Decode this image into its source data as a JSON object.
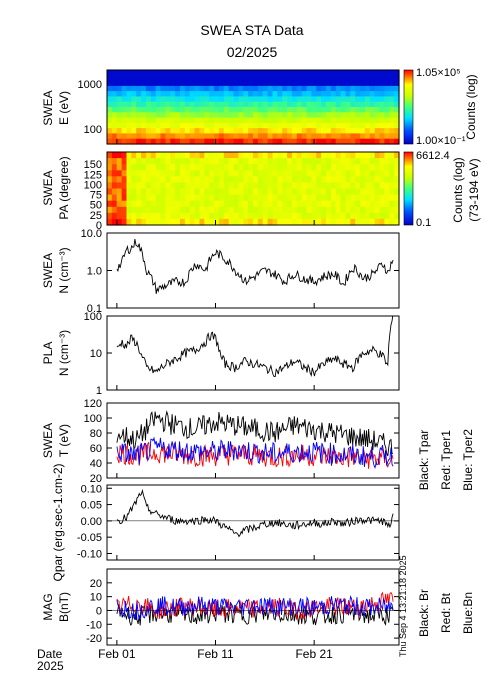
{
  "header": {
    "title": "SWEA STA Data",
    "subtitle": "02/2025"
  },
  "footer": {
    "date_label": "Date",
    "year_label": "2025",
    "timestamp": "Thu Sep  4 13:21:18 2025"
  },
  "colors": {
    "tpar": "#000000",
    "tper1": "#ff0000",
    "tper2": "#0000ff",
    "br": "#000000",
    "bt": "#ff0000",
    "bn": "#0000ff"
  },
  "chart_data": [
    {
      "type": "heatmap",
      "id": "swea_energy",
      "ylabel": [
        "SWEA",
        "E (eV)"
      ],
      "yscale": "log",
      "yticks": [
        "1000",
        "100"
      ],
      "colorbar": {
        "label": "Counts (log)",
        "max_label": "1.05×10⁵",
        "min_label": "1.00×10⁻¹",
        "scale": "log"
      },
      "x_days": [
        1,
        29
      ],
      "description_values": "energy spectrogram, high counts at low energy"
    },
    {
      "type": "heatmap",
      "id": "swea_pa",
      "ylabel": [
        "SWEA",
        "PA (degree)"
      ],
      "yticks": [
        "150",
        "125",
        "100",
        "75",
        "50",
        "25",
        "0"
      ],
      "ylim": [
        0,
        180
      ],
      "colorbar": {
        "label": [
          "Counts (log)",
          "(73-194 eV)"
        ],
        "max_label": "6612.4",
        "min_label": "0.1",
        "scale": "log"
      }
    },
    {
      "type": "line",
      "id": "swea_n",
      "ylabel": [
        "SWEA",
        "N (cm⁻³)"
      ],
      "yscale": "log",
      "ylim": [
        0.1,
        10
      ],
      "yticks": [
        "10.0",
        "1.0",
        "0.1"
      ],
      "x": [
        1,
        1.5,
        2,
        2.5,
        3,
        3.5,
        4,
        4.5,
        5,
        5.5,
        6,
        7,
        8,
        9,
        10,
        10.5,
        11,
        12,
        13,
        14,
        15,
        16,
        17,
        18,
        19,
        20,
        21,
        22,
        23,
        24,
        25,
        26,
        27,
        28,
        28.5,
        29
      ],
      "y": [
        1.2,
        1.5,
        3.5,
        4.0,
        6.0,
        3.0,
        1.0,
        0.6,
        0.3,
        0.35,
        0.4,
        0.5,
        0.5,
        1.5,
        1.0,
        2.0,
        3.0,
        2.0,
        1.0,
        0.5,
        0.7,
        1.0,
        0.8,
        0.5,
        0.8,
        0.6,
        0.5,
        0.7,
        0.8,
        0.4,
        1.2,
        0.6,
        0.8,
        1.5,
        0.8,
        2.0
      ]
    },
    {
      "type": "line",
      "id": "pla_n",
      "ylabel": [
        "PLA",
        "N (cm⁻³)"
      ],
      "yscale": "log",
      "ylim": [
        1,
        100
      ],
      "yticks": [
        "100",
        "10",
        "1"
      ],
      "x": [
        1,
        1.5,
        2,
        2.5,
        3,
        3.5,
        4,
        5,
        6,
        7,
        8,
        9,
        10,
        10.5,
        11,
        11.5,
        12,
        13,
        14,
        15,
        16,
        17,
        18,
        19,
        20,
        21,
        22,
        23,
        24,
        25,
        26,
        27,
        28,
        28.5,
        29
      ],
      "y": [
        12,
        20,
        15,
        25,
        18,
        8,
        4,
        3,
        5,
        7,
        10,
        12,
        20,
        30,
        25,
        8,
        5,
        4,
        6,
        5,
        4,
        3,
        4,
        6,
        4,
        3,
        5,
        7,
        5,
        4,
        10,
        12,
        8,
        4,
        90
      ]
    },
    {
      "type": "line",
      "id": "swea_t",
      "ylabel": [
        "SWEA",
        "T (eV)"
      ],
      "ylim": [
        20,
        120
      ],
      "yticks": [
        "120",
        "100",
        "80",
        "60",
        "40",
        "20"
      ],
      "series": [
        {
          "name": "Black: Tpar",
          "x": [
            1,
            3,
            5,
            7,
            9,
            11,
            13,
            15,
            17,
            19,
            21,
            23,
            25,
            27,
            29
          ],
          "y": [
            80,
            70,
            100,
            90,
            85,
            95,
            90,
            85,
            80,
            90,
            85,
            80,
            75,
            70,
            60
          ]
        },
        {
          "name": "Red: Tper1",
          "x": [
            1,
            3,
            5,
            7,
            9,
            11,
            13,
            15,
            17,
            19,
            21,
            23,
            25,
            27,
            29
          ],
          "y": [
            55,
            50,
            55,
            52,
            50,
            50,
            52,
            50,
            48,
            50,
            50,
            48,
            47,
            46,
            45
          ]
        },
        {
          "name": "Blue: Tper2",
          "x": [
            1,
            3,
            5,
            7,
            9,
            11,
            13,
            15,
            17,
            19,
            21,
            23,
            25,
            27,
            29
          ],
          "y": [
            55,
            50,
            60,
            58,
            55,
            55,
            58,
            55,
            52,
            55,
            55,
            52,
            50,
            48,
            50
          ]
        }
      ]
    },
    {
      "type": "line",
      "id": "qpar",
      "ylabel": [
        "Qpar (erg.sec-1.cm-2)"
      ],
      "ylim": [
        -0.12,
        0.11
      ],
      "yticks": [
        "0.10",
        "0.05",
        "0.00",
        "-0.05",
        "-0.10"
      ],
      "x": [
        1,
        2,
        3,
        3.5,
        4,
        5,
        6,
        7,
        8,
        9,
        10,
        11,
        12,
        13,
        14,
        15,
        16,
        17,
        18,
        19,
        20,
        21,
        22,
        23,
        24,
        25,
        26,
        27,
        28,
        28.5,
        29
      ],
      "y": [
        0.0,
        0.01,
        0.06,
        0.09,
        0.04,
        0.02,
        0.01,
        0.0,
        0.0,
        0.0,
        0.005,
        0.0,
        -0.02,
        -0.04,
        -0.03,
        -0.02,
        -0.01,
        -0.005,
        -0.01,
        -0.015,
        -0.01,
        -0.005,
        -0.01,
        0.0,
        -0.01,
        0.0,
        0.005,
        0.0,
        0.0,
        -0.02,
        0.01
      ]
    },
    {
      "type": "line",
      "id": "mag_b",
      "ylabel": [
        "MAG",
        "B(nT)"
      ],
      "ylim": [
        -25,
        30
      ],
      "yticks": [
        "20",
        "10",
        "0",
        "-10",
        "-20"
      ],
      "series": [
        {
          "name": "Black: Br",
          "x": [
            1,
            3,
            5,
            7,
            9,
            11,
            13,
            15,
            17,
            19,
            21,
            23,
            25,
            27,
            29
          ],
          "y": [
            0,
            -5,
            -2,
            -3,
            -4,
            -2,
            -3,
            -3,
            -2,
            -3,
            -4,
            -3,
            -2,
            -4,
            -3
          ]
        },
        {
          "name": "Red: Bt",
          "x": [
            1,
            3,
            5,
            7,
            9,
            11,
            13,
            15,
            17,
            19,
            21,
            23,
            25,
            27,
            29
          ],
          "y": [
            2,
            5,
            0,
            2,
            3,
            0,
            2,
            1,
            3,
            0,
            2,
            3,
            2,
            5,
            8
          ]
        },
        {
          "name": "Blue:Bn",
          "x": [
            1,
            3,
            5,
            7,
            9,
            11,
            13,
            15,
            17,
            19,
            21,
            23,
            25,
            27,
            29
          ],
          "y": [
            3,
            0,
            4,
            2,
            4,
            3,
            2,
            4,
            3,
            3,
            2,
            4,
            3,
            2,
            3
          ]
        }
      ]
    }
  ],
  "xaxis": {
    "ticks": [
      {
        "day": 1,
        "label": "Feb 01"
      },
      {
        "day": 11,
        "label": "Feb 11"
      },
      {
        "day": 21,
        "label": "Feb 21"
      }
    ],
    "xlim": [
      0,
      29.6
    ]
  }
}
